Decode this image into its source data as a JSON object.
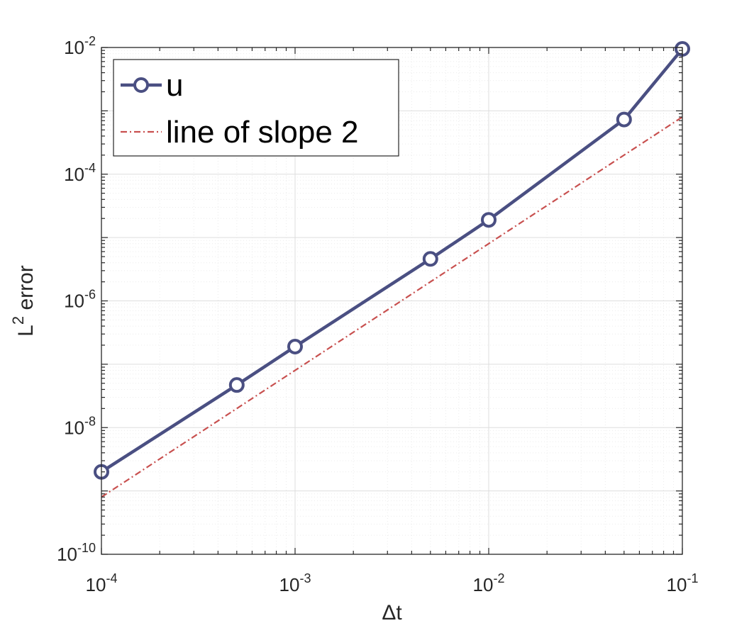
{
  "chart_data": {
    "type": "line",
    "x_scale": "log",
    "y_scale": "log",
    "xlim": [
      0.0001,
      0.1
    ],
    "ylim": [
      1e-10,
      0.01
    ],
    "xlabel": "Δt",
    "ylabel": {
      "base": "L",
      "superscript": "2",
      "rest": " error"
    },
    "grid": true,
    "minor_grid": true,
    "legend_location": "top-left",
    "x_ticks": [
      {
        "value": 0.0001,
        "base": "10",
        "exp": "-4"
      },
      {
        "value": 0.001,
        "base": "10",
        "exp": "-3"
      },
      {
        "value": 0.01,
        "base": "10",
        "exp": "-2"
      },
      {
        "value": 0.1,
        "base": "10",
        "exp": "-1"
      }
    ],
    "y_ticks": [
      {
        "value": 1e-10,
        "base": "10",
        "exp": "-10"
      },
      {
        "value": 1e-08,
        "base": "10",
        "exp": "-8"
      },
      {
        "value": 1e-06,
        "base": "10",
        "exp": "-6"
      },
      {
        "value": 0.0001,
        "base": "10",
        "exp": "-4"
      },
      {
        "value": 0.01,
        "base": "10",
        "exp": "-2"
      }
    ],
    "series": [
      {
        "name": "u",
        "color": "#4a4f82",
        "style": "solid",
        "marker": "circle",
        "x": [
          0.0001,
          0.0005,
          0.001,
          0.005,
          0.01,
          0.05,
          0.1
        ],
        "y": [
          2e-09,
          4.7e-08,
          1.9e-07,
          4.6e-06,
          1.9e-05,
          0.00073,
          0.0095
        ]
      },
      {
        "name": "line of slope 2",
        "color": "#c8504f",
        "style": "dashdot",
        "marker": "none",
        "x": [
          0.0001,
          0.1
        ],
        "y": [
          8e-10,
          0.0008
        ]
      }
    ]
  }
}
